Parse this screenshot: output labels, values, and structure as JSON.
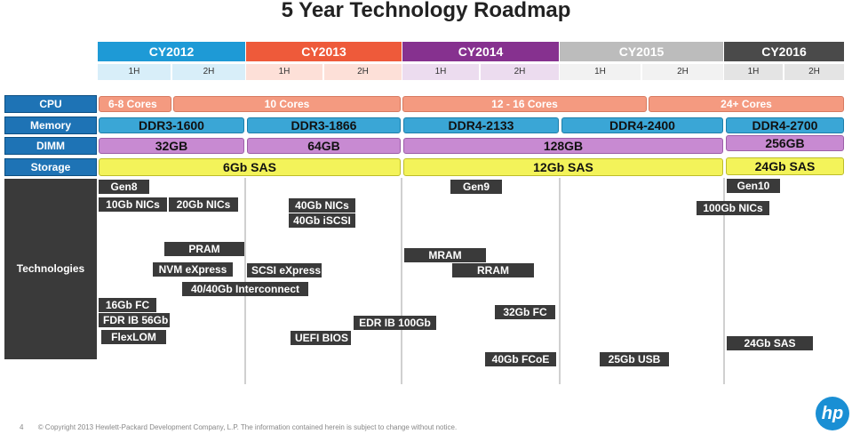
{
  "title": "5 Year Technology Roadmap",
  "years": [
    {
      "label": "CY2012",
      "color": "#1e9ad6",
      "half_bg": "#d8eef9"
    },
    {
      "label": "CY2013",
      "color": "#ee5a3a",
      "half_bg": "#fde0d8"
    },
    {
      "label": "CY2014",
      "color": "#86318f",
      "half_bg": "#ecdcef"
    },
    {
      "label": "CY2015",
      "color": "#bcbcbc",
      "half_bg": "#f2f2f2"
    },
    {
      "label": "CY2016",
      "color": "#4a4a4a",
      "half_bg": "#e4e4e4"
    }
  ],
  "halves": [
    "1H",
    "2H",
    "1H",
    "2H",
    "1H",
    "2H",
    "1H",
    "2H",
    "1H",
    "2H"
  ],
  "rows": {
    "cpu": "CPU",
    "memory": "Memory",
    "dimm": "DIMM",
    "storage": "Storage",
    "technologies": "Technologies"
  },
  "cpu_bars": [
    "6-8 Cores",
    "10 Cores",
    "12 - 16 Cores",
    "24+ Cores"
  ],
  "memory_bars": [
    "DDR3-1600",
    "DDR3-1866",
    "DDR4-2133",
    "DDR4-2400",
    "DDR4-2700"
  ],
  "dimm_bars": [
    "32GB",
    "64GB",
    "128GB",
    "256GB"
  ],
  "storage_bars": [
    "6Gb SAS",
    "12Gb SAS",
    "24Gb SAS"
  ],
  "technologies": [
    "Gen8",
    "10Gb NICs",
    "20Gb NICs",
    "40Gb NICs",
    "40Gb iSCSI",
    "PRAM",
    "NVM eXpress",
    "SCSI eXpress",
    "40/40Gb Interconnect",
    "16Gb FC",
    "FDR IB 56Gb",
    "FlexLOM",
    "UEFI BIOS",
    "EDR IB 100Gb",
    "Gen9",
    "MRAM",
    "RRAM",
    "32Gb FC",
    "40Gb FCoE",
    "25Gb USB",
    "Gen10",
    "100Gb NICs",
    "24Gb SAS"
  ],
  "footer": {
    "page": "4",
    "copyright": "© Copyright 2013 Hewlett-Packard   Development   Company, L.P.   The information  contained  herein is subject to change without notice."
  },
  "logo": "hp"
}
